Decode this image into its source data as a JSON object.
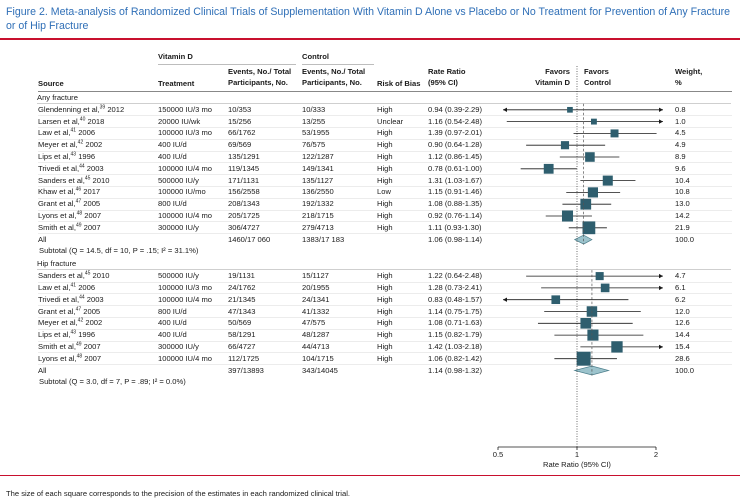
{
  "title": "Figure 2. Meta-analysis of Randomized Clinical Trials of Supplementation With Vitamin D Alone vs Placebo or No Treatment for Prevention of Any Fracture or of Hip Fracture",
  "headers": {
    "vitamin_d": "Vitamin D",
    "control": "Control",
    "source": "Source",
    "treatment": "Treatment",
    "events_vit_line1": "Events, No./ Total",
    "events_vit_line2": "Participants, No.",
    "events_ctl_line1": "Events, No./ Total",
    "events_ctl_line2": "Participants, No.",
    "risk_of_bias": "Risk of Bias",
    "rate_ratio_line1": "Rate Ratio",
    "rate_ratio_line2": "(95% CI)",
    "favors_vitd_line1": "Favors",
    "favors_vitd_line2": "Vitamin D",
    "favors_ctl_line1": "Favors",
    "favors_ctl_line2": "Control",
    "weight_line1": "Weight,",
    "weight_line2": "%"
  },
  "footnote": "The size of each square corresponds to the precision of the estimates in each randomized clinical trial.",
  "chart_data": {
    "type": "forest",
    "xlabel": "Rate Ratio (95% CI)",
    "x_scale": "log",
    "xlim": [
      0.5,
      2
    ],
    "x_ticks": [
      {
        "value": 0.5,
        "label": "0.5"
      },
      {
        "value": 1,
        "label": "1"
      },
      {
        "value": 2,
        "label": "2"
      }
    ],
    "groups": [
      {
        "name": "Any fracture",
        "subtotal": "Subtotal (Q = 14.5, df = 10, P = .15; I² = 31.1%)",
        "pooled": {
          "label": "All",
          "vit_events": "1460/17 060",
          "ctl_events": "1383/17 183",
          "rr_text": "1.06 (0.98-1.14)",
          "rr": 1.06,
          "lo": 0.98,
          "hi": 1.14,
          "weight": "100.0"
        },
        "studies": [
          {
            "author": "Glendenning et al,",
            "ref": "39",
            "year": "2012",
            "treatment": "150000 IU/3 mo",
            "vit_events": "10/353",
            "ctl_events": "10/333",
            "bias": "High",
            "rr_text": "0.94 (0.39-2.29)",
            "rr": 0.94,
            "lo": 0.39,
            "hi": 2.29,
            "weight": "0.8"
          },
          {
            "author": "Larsen et al,",
            "ref": "40",
            "year": "2018",
            "treatment": "20000 IU/wk",
            "vit_events": "15/256",
            "ctl_events": "13/255",
            "bias": "Unclear",
            "rr_text": "1.16 (0.54-2.48)",
            "rr": 1.16,
            "lo": 0.54,
            "hi": 2.48,
            "weight": "1.0"
          },
          {
            "author": "Law et al,",
            "ref": "41",
            "year": "2006",
            "treatment": "100000 IU/3 mo",
            "vit_events": "66/1762",
            "ctl_events": "53/1955",
            "bias": "High",
            "rr_text": "1.39 (0.97-2.01)",
            "rr": 1.39,
            "lo": 0.97,
            "hi": 2.01,
            "weight": "4.5"
          },
          {
            "author": "Meyer et al,",
            "ref": "42",
            "year": "2002",
            "treatment": "400 IU/d",
            "vit_events": "69/569",
            "ctl_events": "76/575",
            "bias": "High",
            "rr_text": "0.90 (0.64-1.28)",
            "rr": 0.9,
            "lo": 0.64,
            "hi": 1.28,
            "weight": "4.9"
          },
          {
            "author": "Lips et al,",
            "ref": "43",
            "year": "1996",
            "treatment": "400 IU/d",
            "vit_events": "135/1291",
            "ctl_events": "122/1287",
            "bias": "High",
            "rr_text": "1.12 (0.86-1.45)",
            "rr": 1.12,
            "lo": 0.86,
            "hi": 1.45,
            "weight": "8.9"
          },
          {
            "author": "Trivedi et al,",
            "ref": "44",
            "year": "2003",
            "treatment": "100000 IU/4 mo",
            "vit_events": "119/1345",
            "ctl_events": "149/1341",
            "bias": "High",
            "rr_text": "0.78 (0.61-1.00)",
            "rr": 0.78,
            "lo": 0.61,
            "hi": 1.0,
            "weight": "9.6"
          },
          {
            "author": "Sanders et al,",
            "ref": "45",
            "year": "2010",
            "treatment": "500000 IU/y",
            "vit_events": "171/1131",
            "ctl_events": "135/1127",
            "bias": "High",
            "rr_text": "1.31 (1.03-1.67)",
            "rr": 1.31,
            "lo": 1.03,
            "hi": 1.67,
            "weight": "10.4"
          },
          {
            "author": "Khaw et al,",
            "ref": "46",
            "year": "2017",
            "treatment": "100000 IU/mo",
            "vit_events": "156/2558",
            "ctl_events": "136/2550",
            "bias": "Low",
            "rr_text": "1.15 (0.91-1.46)",
            "rr": 1.15,
            "lo": 0.91,
            "hi": 1.46,
            "weight": "10.8"
          },
          {
            "author": "Grant et al,",
            "ref": "47",
            "year": "2005",
            "treatment": "800 IU/d",
            "vit_events": "208/1343",
            "ctl_events": "192/1332",
            "bias": "High",
            "rr_text": "1.08 (0.88-1.35)",
            "rr": 1.08,
            "lo": 0.88,
            "hi": 1.35,
            "weight": "13.0"
          },
          {
            "author": "Lyons et al,",
            "ref": "48",
            "year": "2007",
            "treatment": "100000 IU/4 mo",
            "vit_events": "205/1725",
            "ctl_events": "218/1715",
            "bias": "High",
            "rr_text": "0.92 (0.76-1.14)",
            "rr": 0.92,
            "lo": 0.76,
            "hi": 1.14,
            "weight": "14.2"
          },
          {
            "author": "Smith et al,",
            "ref": "49",
            "year": "2007",
            "treatment": "300000 IU/y",
            "vit_events": "306/4727",
            "ctl_events": "279/4713",
            "bias": "High",
            "rr_text": "1.11 (0.93-1.30)",
            "rr": 1.11,
            "lo": 0.93,
            "hi": 1.3,
            "weight": "21.9"
          }
        ]
      },
      {
        "name": "Hip fracture",
        "subtotal": "Subtotal (Q = 3.0, df = 7, P = .89; I² = 0.0%)",
        "pooled": {
          "label": "All",
          "vit_events": "397/13893",
          "ctl_events": "343/14045",
          "rr_text": "1.14 (0.98-1.32)",
          "rr": 1.14,
          "lo": 0.98,
          "hi": 1.32,
          "weight": "100.0"
        },
        "studies": [
          {
            "author": "Sanders et al,",
            "ref": "45",
            "year": "2010",
            "treatment": "500000 IU/y",
            "vit_events": "19/1131",
            "ctl_events": "15/1127",
            "bias": "High",
            "rr_text": "1.22 (0.64-2.48)",
            "rr": 1.22,
            "lo": 0.64,
            "hi": 2.48,
            "weight": "4.7"
          },
          {
            "author": "Law et al,",
            "ref": "41",
            "year": "2006",
            "treatment": "100000 IU/3 mo",
            "vit_events": "24/1762",
            "ctl_events": "20/1955",
            "bias": "High",
            "rr_text": "1.28 (0.73-2.41)",
            "rr": 1.28,
            "lo": 0.73,
            "hi": 2.41,
            "weight": "6.1"
          },
          {
            "author": "Trivedi et al,",
            "ref": "44",
            "year": "2003",
            "treatment": "100000 IU/4 mo",
            "vit_events": "21/1345",
            "ctl_events": "24/1341",
            "bias": "High",
            "rr_text": "0.83 (0.48-1.57)",
            "rr": 0.83,
            "lo": 0.48,
            "hi": 1.57,
            "weight": "6.2"
          },
          {
            "author": "Grant et al,",
            "ref": "47",
            "year": "2005",
            "treatment": "800 IU/d",
            "vit_events": "47/1343",
            "ctl_events": "41/1332",
            "bias": "High",
            "rr_text": "1.14 (0.75-1.75)",
            "rr": 1.14,
            "lo": 0.75,
            "hi": 1.75,
            "weight": "12.0"
          },
          {
            "author": "Meyer et al,",
            "ref": "42",
            "year": "2002",
            "treatment": "400 IU/d",
            "vit_events": "50/569",
            "ctl_events": "47/575",
            "bias": "High",
            "rr_text": "1.08 (0.71-1.63)",
            "rr": 1.08,
            "lo": 0.71,
            "hi": 1.63,
            "weight": "12.6"
          },
          {
            "author": "Lips et al,",
            "ref": "43",
            "year": "1996",
            "treatment": "400 IU/d",
            "vit_events": "58/1291",
            "ctl_events": "48/1287",
            "bias": "High",
            "rr_text": "1.15 (0.82-1.79)",
            "rr": 1.15,
            "lo": 0.82,
            "hi": 1.79,
            "weight": "14.4"
          },
          {
            "author": "Smith et al,",
            "ref": "49",
            "year": "2007",
            "treatment": "300000 IU/y",
            "vit_events": "66/4727",
            "ctl_events": "44/4713",
            "bias": "High",
            "rr_text": "1.42 (1.03-2.18)",
            "rr": 1.42,
            "lo": 1.03,
            "hi": 2.18,
            "weight": "15.4"
          },
          {
            "author": "Lyons et al,",
            "ref": "48",
            "year": "2007",
            "treatment": "100000 IU/4 mo",
            "vit_events": "112/1725",
            "ctl_events": "104/1715",
            "bias": "High",
            "rr_text": "1.06 (0.82-1.42)",
            "rr": 1.06,
            "lo": 0.82,
            "hi": 1.42,
            "weight": "28.6"
          }
        ]
      }
    ],
    "colors": {
      "marker": "#2e5e6e",
      "diamond": "#9cc3cc",
      "diamond_stroke": "#4d7f8c",
      "null_line": "#333333",
      "pooled_line": "#555555"
    }
  }
}
